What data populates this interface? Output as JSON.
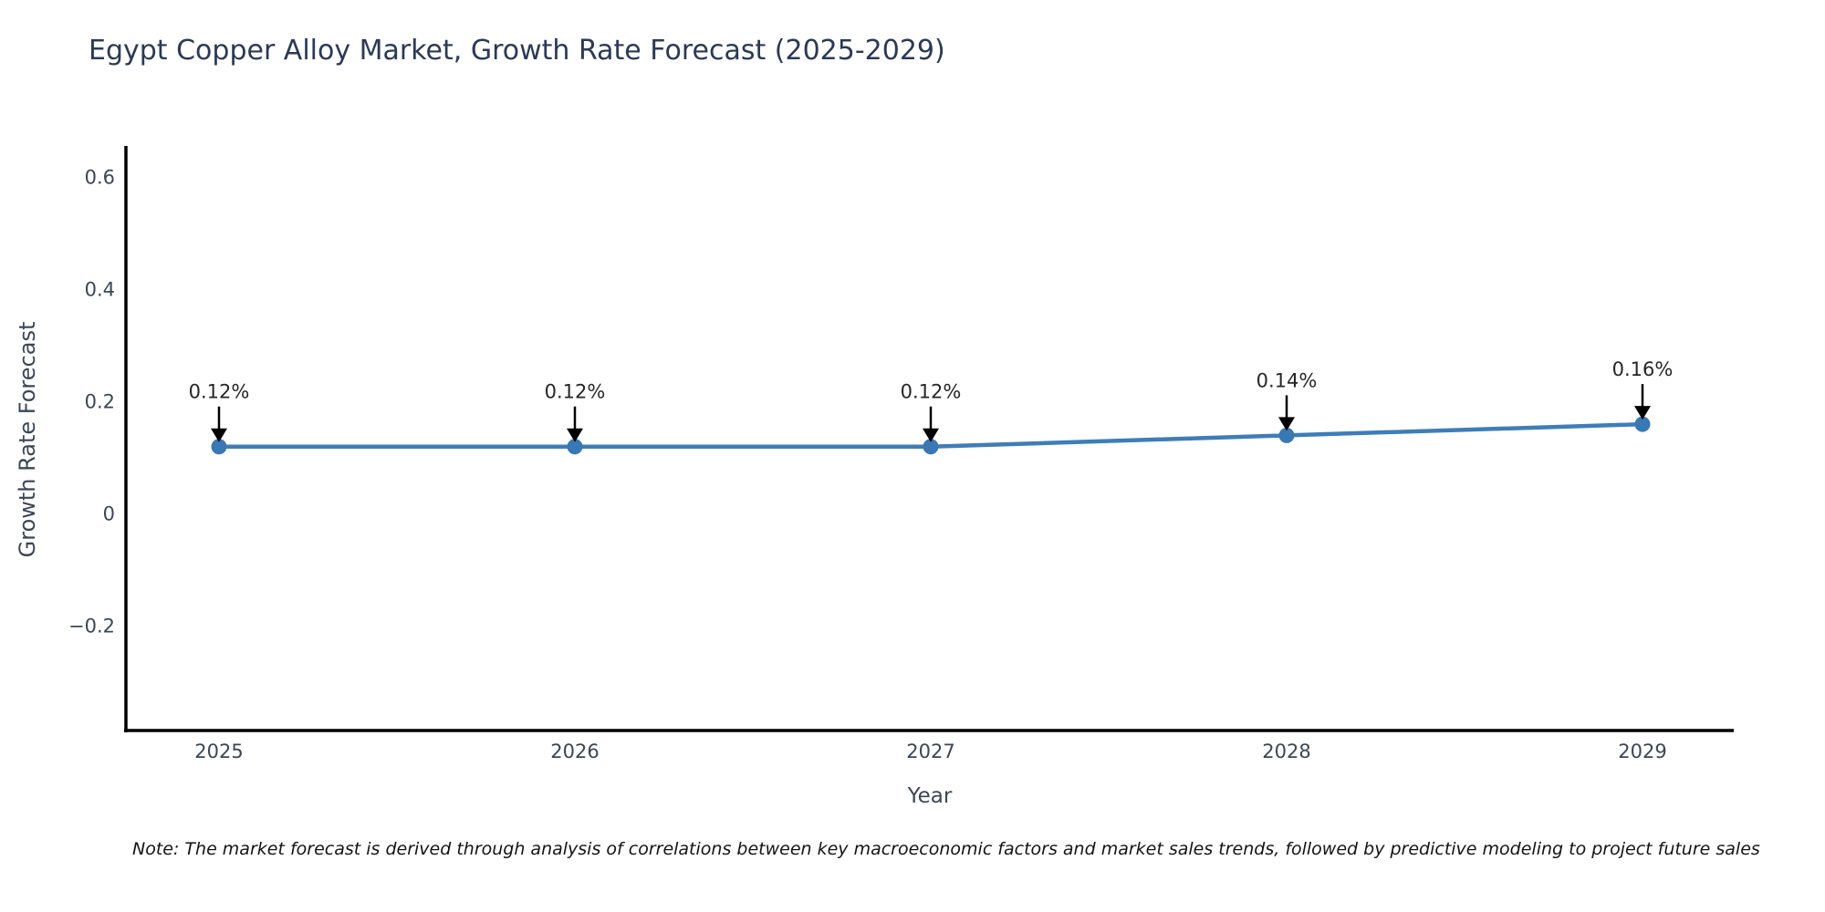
{
  "title": "Egypt Copper Alloy Market, Growth Rate Forecast (2025-2029)",
  "footnote": "Note: The market forecast is derived through analysis of correlations between key macroeconomic factors and market sales trends, followed by predictive modeling to project future sales",
  "chart_data": {
    "type": "line",
    "title": "Egypt Copper Alloy Market, Growth Rate Forecast (2025-2029)",
    "xlabel": "Year",
    "ylabel": "Growth Rate Forecast",
    "categories": [
      "2025",
      "2026",
      "2027",
      "2028",
      "2029"
    ],
    "series": [
      {
        "name": "Growth Rate Forecast",
        "values": [
          0.12,
          0.12,
          0.12,
          0.14,
          0.16
        ],
        "labels": [
          "0.12%",
          "0.12%",
          "0.12%",
          "0.14%",
          "0.16%"
        ]
      }
    ],
    "yticks": [
      -0.2,
      0,
      0.2,
      0.4,
      0.6
    ],
    "ytick_labels": [
      "−0.2",
      "0",
      "0.2",
      "0.4",
      "0.6"
    ],
    "ylim": [
      -0.386,
      0.656
    ],
    "grid": false,
    "legend_position": "none",
    "annotation_style": "value labels with down arrows above each point",
    "colors": {
      "line": "#3e7db9",
      "marker": "#3878b4",
      "axis": "#000000",
      "annotation_arrow": "#000000",
      "title_text": "#2b3a55",
      "tick_text": "#3b4657"
    }
  }
}
